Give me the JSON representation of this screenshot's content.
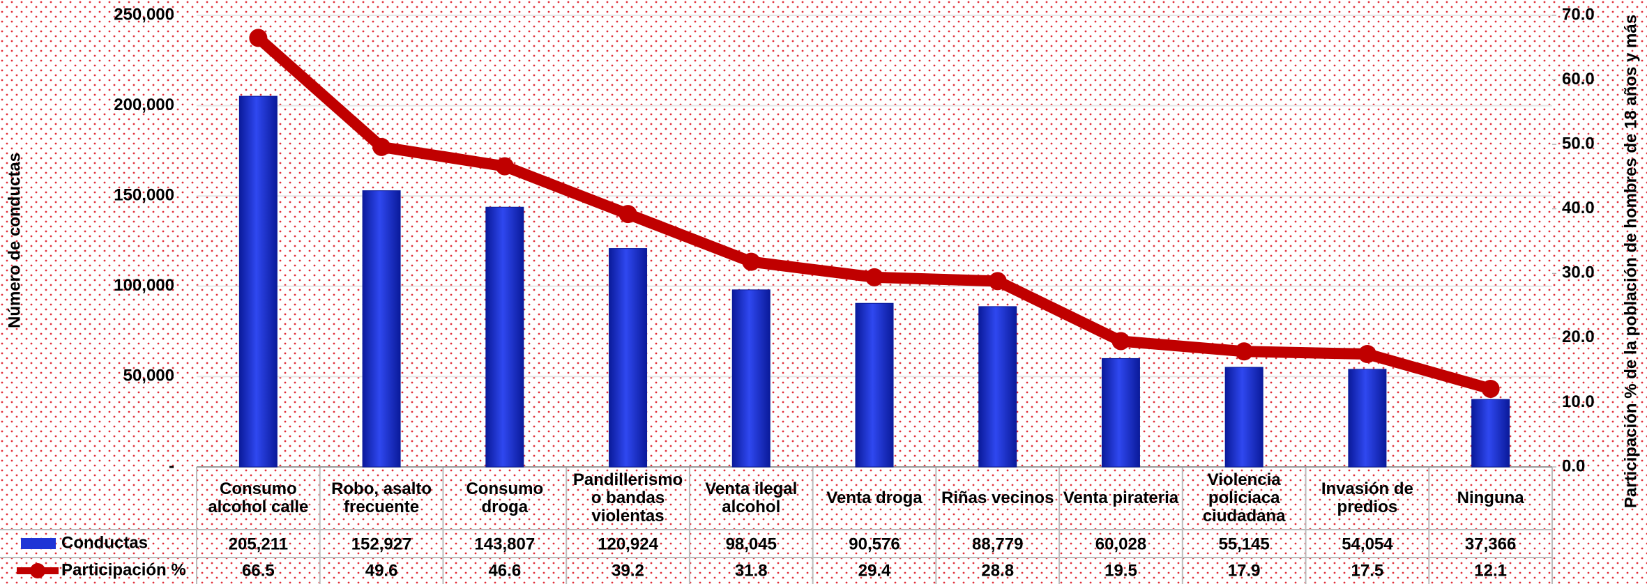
{
  "chart_data": {
    "type": "bar_line",
    "y_label": "Número de conductas",
    "y2_label": "Participación % de la población de hombres de 18 años y más",
    "categories": [
      "Consumo alcohol calle",
      "Robo, asalto frecuente",
      "Consumo droga",
      "Pandillerismo o bandas violentas",
      "Venta ilegal alcohol",
      "Venta droga",
      "Riñas vecinos",
      "Venta pirateria",
      "Violencia policiaca ciudadana",
      "Invasión de predios",
      "Ninguna"
    ],
    "series": [
      {
        "name": "Conductas",
        "type": "bar",
        "color": "#1f35d6",
        "values": [
          205211,
          152927,
          143807,
          120924,
          98045,
          90576,
          88779,
          60028,
          55145,
          54054,
          37366
        ],
        "value_labels": [
          "205,211",
          "152,927",
          "143,807",
          "120,924",
          "98,045",
          "90,576",
          "88,779",
          "60,028",
          "55,145",
          "54,054",
          "37,366"
        ]
      },
      {
        "name": "Participación %",
        "type": "line",
        "axis": "y2",
        "color": "#c00000",
        "values": [
          66.5,
          49.6,
          46.6,
          39.2,
          31.8,
          29.4,
          28.8,
          19.5,
          17.9,
          17.5,
          12.1
        ]
      }
    ],
    "ylim": [
      0,
      250000
    ],
    "yticks": [
      {
        "value": 0,
        "label": "-"
      },
      {
        "value": 50000,
        "label": "50,000"
      },
      {
        "value": 100000,
        "label": "100,000"
      },
      {
        "value": 150000,
        "label": "150,000"
      },
      {
        "value": 200000,
        "label": "200,000"
      },
      {
        "value": 250000,
        "label": "250,000"
      }
    ],
    "y2lim": [
      0,
      70
    ],
    "y2ticks": [
      {
        "value": 0,
        "label": "0.0"
      },
      {
        "value": 10,
        "label": "10.0"
      },
      {
        "value": 20,
        "label": "20.0"
      },
      {
        "value": 30,
        "label": "30.0"
      },
      {
        "value": 40,
        "label": "40.0"
      },
      {
        "value": 50,
        "label": "50.0"
      },
      {
        "value": 60,
        "label": "60.0"
      },
      {
        "value": 70,
        "label": "70.0"
      }
    ],
    "grid": true
  }
}
